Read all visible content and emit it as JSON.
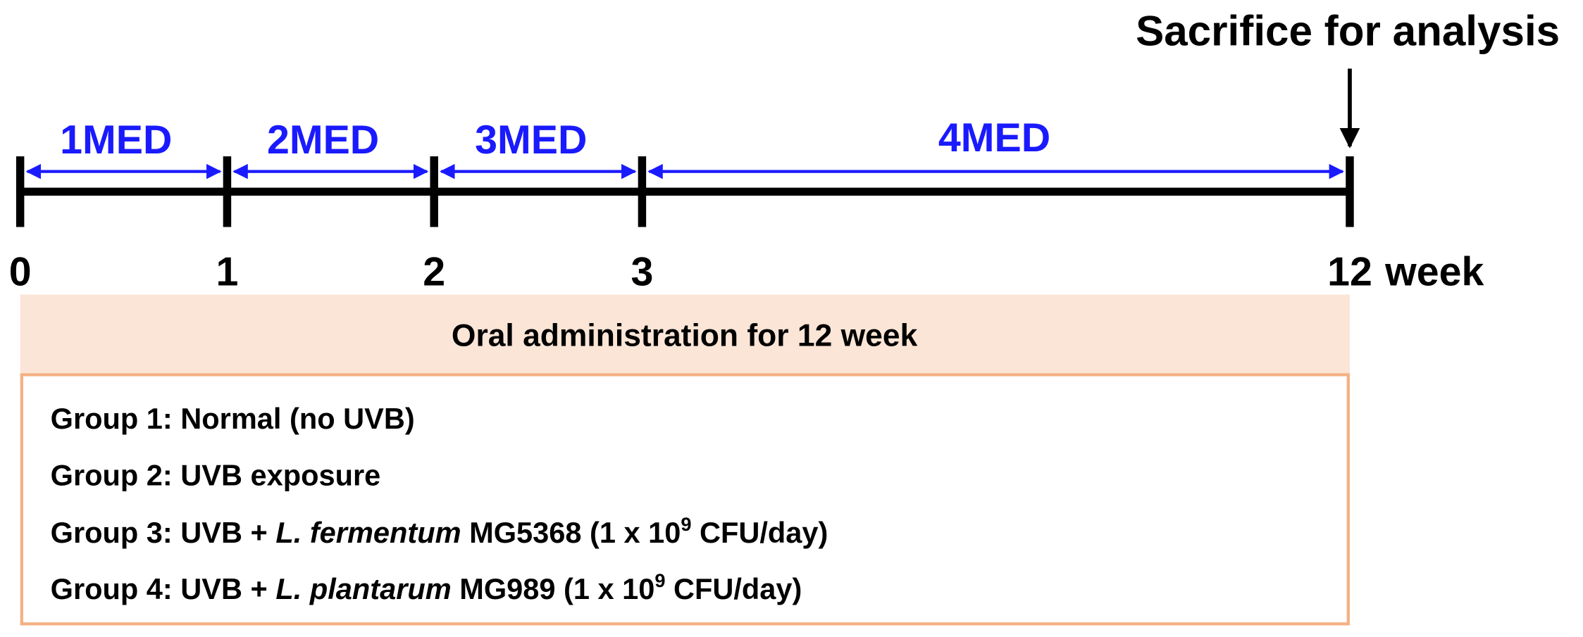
{
  "timeline": {
    "endpoint_label": "Sacrifice for analysis",
    "ticks": [
      "0",
      "1",
      "2",
      "3",
      "12"
    ],
    "unit": "week",
    "phases": [
      "1MED",
      "2MED",
      "3MED",
      "4MED"
    ]
  },
  "box": {
    "header": "Oral administration for 12 week",
    "groups": [
      {
        "label": "Group 1:",
        "text": "Normal (no UVB)"
      },
      {
        "label": "Group 2:",
        "text": "UVB exposure"
      },
      {
        "label": "Group 3:",
        "treatment": "UVB +",
        "species": "L. fermentum",
        "strain": "MG5368",
        "dose_prefix": "(1 x 10",
        "dose_exponent": "9",
        "dose_suffix": "CFU/day)"
      },
      {
        "label": "Group 4:",
        "treatment": "UVB +",
        "species": "L. plantarum",
        "strain": "MG989",
        "dose_prefix": "(1 x 10",
        "dose_exponent": "9",
        "dose_suffix": "CFU/day)"
      }
    ]
  }
}
